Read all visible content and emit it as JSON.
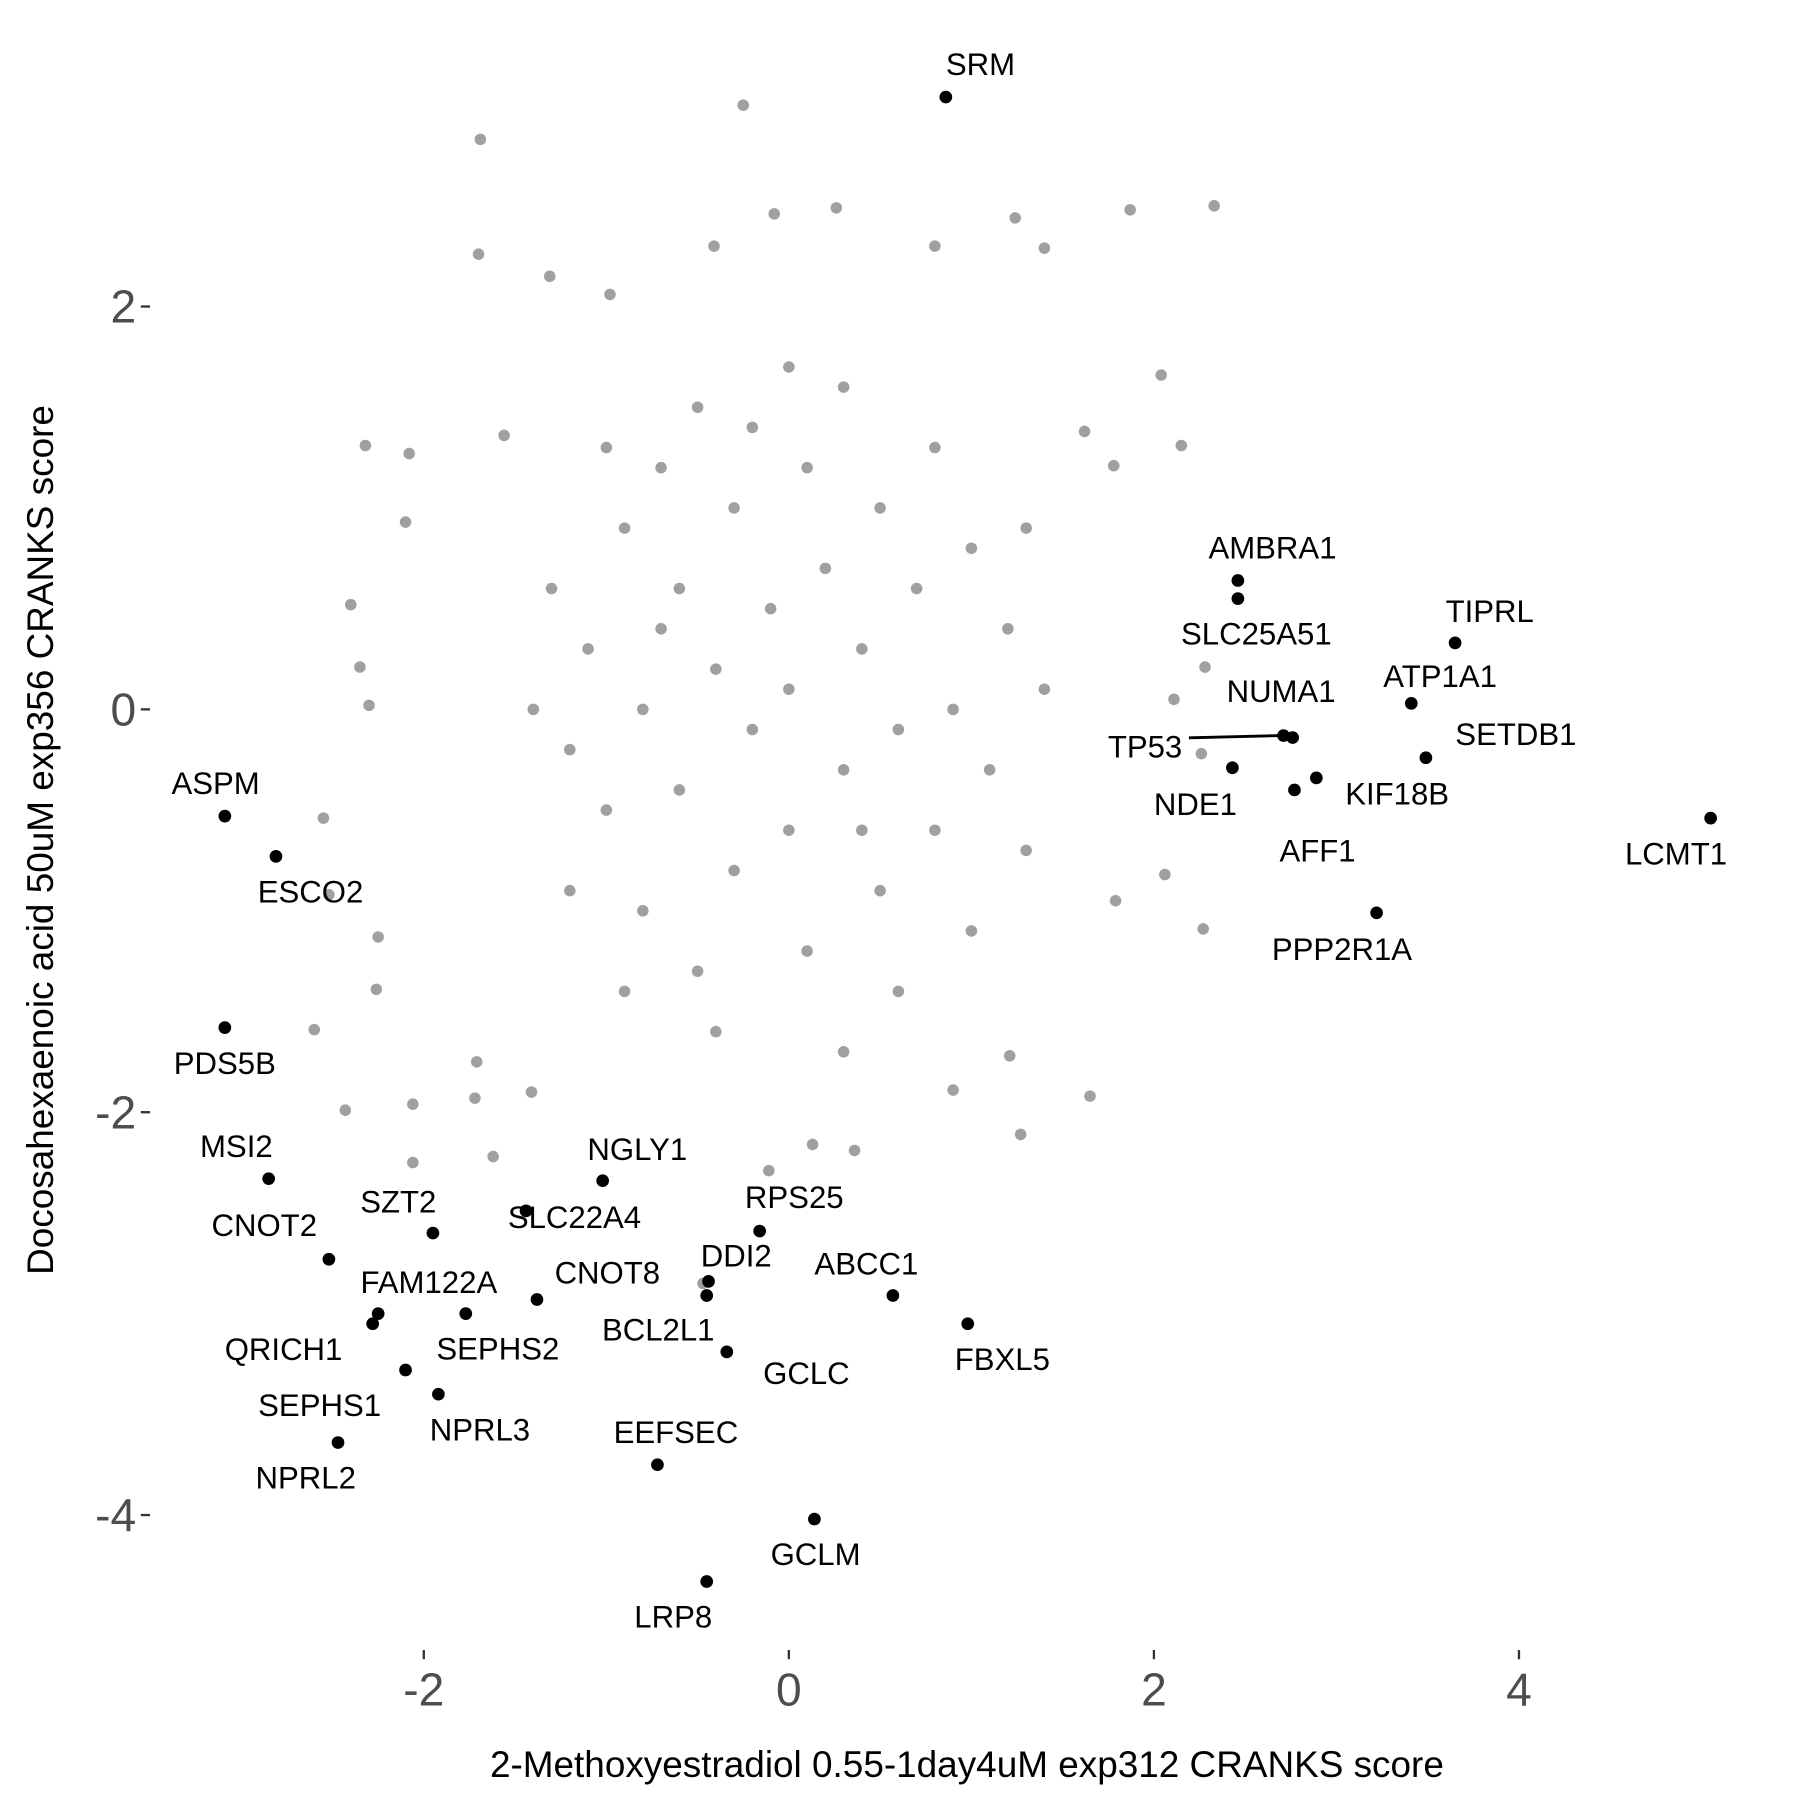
{
  "chart_data": {
    "type": "scatter",
    "x_label": "2-Methoxyestradiol 0.55-1day4uM exp312 CRANKS score",
    "y_label": "Docosahexaenoic acid 50uM exp356 CRANKS score",
    "xlim": [
      -3.5,
      5.35
    ],
    "ylim": [
      -4.67,
      3.35
    ],
    "xticks": [
      -2,
      0,
      2,
      4
    ],
    "yticks": [
      -4,
      -2,
      0,
      2
    ],
    "series": [
      {
        "color": "#a0a0a0",
        "x": [
          -0.25,
          -1.69,
          -1.7,
          0.26,
          2.33,
          1.87,
          1.24,
          -0.08,
          -0.41,
          0.8,
          1.4,
          -1.31,
          -0.98,
          -2.32,
          -2.08,
          -1.56,
          -2.1,
          -2.4,
          -2.55,
          -2.52,
          -2.26,
          -2.43,
          -2.6,
          -2.06,
          -2.06,
          -1.62,
          -1.72,
          -1.41,
          2.06,
          2.27,
          2.15,
          2.04,
          2.28,
          2.11,
          1.65,
          1.27,
          0.36,
          0.13,
          -0.11,
          -0.47,
          2.26,
          1.79,
          -2.25,
          -2.3,
          -2.35,
          1.78,
          1.62,
          1.21,
          0.9,
          -1.71,
          -1.1,
          -1.0,
          -0.9,
          -0.8,
          -0.8,
          -0.7,
          -0.6,
          -0.6,
          -0.5,
          -0.5,
          -0.4,
          -0.3,
          -0.3,
          -0.2,
          -0.2,
          -0.1,
          0.0,
          0.0,
          0.1,
          0.1,
          0.2,
          0.3,
          0.3,
          0.4,
          0.5,
          0.5,
          0.6,
          0.7,
          0.8,
          0.8,
          0.9,
          1.0,
          1.0,
          1.1,
          1.2,
          -1.2,
          -1.3,
          -1.2,
          -0.9,
          0.6,
          1.3,
          1.3,
          -1.0,
          0.0,
          -0.4,
          0.3,
          1.4,
          -1.4,
          -0.7,
          0.4
        ],
        "y": [
          3.0,
          2.83,
          2.26,
          2.49,
          2.5,
          2.48,
          2.44,
          2.46,
          2.3,
          2.3,
          2.29,
          2.15,
          2.06,
          1.31,
          1.27,
          1.36,
          0.93,
          0.52,
          -0.54,
          -0.92,
          -1.39,
          -1.99,
          -1.59,
          -1.96,
          -2.25,
          -2.22,
          -1.93,
          -1.9,
          -0.82,
          -1.09,
          1.31,
          1.66,
          0.21,
          0.05,
          -1.92,
          -2.11,
          -2.19,
          -2.16,
          -2.29,
          -2.85,
          -0.22,
          -0.95,
          -1.13,
          0.02,
          0.21,
          1.21,
          1.38,
          -1.72,
          -1.89,
          -1.75,
          0.3,
          -0.5,
          0.9,
          -1.0,
          0.0,
          1.2,
          -0.4,
          0.6,
          -1.3,
          1.5,
          0.2,
          -0.8,
          1.0,
          -0.1,
          1.4,
          0.5,
          -0.6,
          0.1,
          1.2,
          -1.2,
          0.7,
          -0.3,
          1.6,
          0.3,
          -0.9,
          1.0,
          -0.1,
          0.6,
          -0.6,
          1.3,
          0.0,
          -1.1,
          0.8,
          -0.3,
          0.4,
          -0.2,
          0.6,
          -0.9,
          -1.4,
          -1.4,
          -0.7,
          0.9,
          1.3,
          1.7,
          -1.6,
          -1.7,
          0.1,
          0.0,
          0.4,
          -0.6
        ]
      },
      {
        "color": "#000000",
        "labels": [
          "SRM",
          "AMBRA1",
          "SLC25A51",
          "TIPRL",
          "ATP1A1",
          "NUMA1",
          "TP53",
          "SETDB1",
          "NDE1",
          "KIF18B",
          "AFF1",
          "LCMT1",
          "PPP2R1A",
          "ASPM",
          "ESCO2",
          "PDS5B",
          "MSI2",
          "NGLY1",
          "SLC22A4",
          "SZT2",
          "RPS25",
          "CNOT2",
          "DDI2",
          "ABCC1",
          "CNOT8",
          "FAM122A",
          "QRICH1",
          "SEPHS1",
          "BCL2L1",
          "FBXL5",
          "GCLC",
          "SEPHS2",
          "NPRL3",
          "NPRL2",
          "EEFSEC",
          "GCLM",
          "LRP8"
        ],
        "x": [
          0.86,
          2.46,
          2.46,
          3.65,
          3.41,
          2.76,
          2.71,
          3.49,
          2.43,
          2.89,
          2.77,
          5.05,
          3.22,
          -3.09,
          -2.81,
          -3.09,
          -2.85,
          -1.02,
          -1.44,
          -1.95,
          -0.16,
          -2.52,
          -0.44,
          0.57,
          -1.38,
          -1.77,
          -2.25,
          -2.28,
          -0.45,
          0.98,
          -0.34,
          -2.1,
          -1.92,
          -2.47,
          -0.72,
          0.14,
          -0.45
        ],
        "y": [
          3.04,
          0.64,
          0.55,
          0.33,
          0.03,
          -0.14,
          -0.13,
          -0.24,
          -0.29,
          -0.34,
          -0.4,
          -0.54,
          -1.01,
          -0.53,
          -0.73,
          -1.58,
          -2.33,
          -2.34,
          -2.49,
          -2.6,
          -2.59,
          -2.73,
          -2.84,
          -2.91,
          -2.93,
          -3.0,
          -3.0,
          -3.05,
          -2.91,
          -3.05,
          -3.19,
          -3.28,
          -3.4,
          -3.64,
          -3.75,
          -4.02,
          -4.33
        ]
      }
    ]
  }
}
